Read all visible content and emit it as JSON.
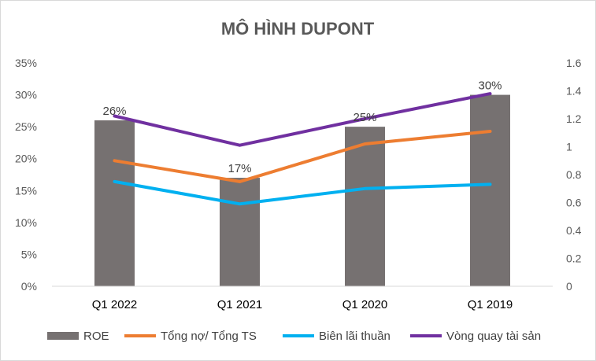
{
  "chart_data": {
    "type": "bar",
    "title": "MÔ HÌNH DUPONT",
    "categories": [
      "Q1 2022",
      "Q1 2021",
      "Q1 2020",
      "Q1 2019"
    ],
    "bar_series": {
      "name": "ROE",
      "axis": "left",
      "values": [
        0.26,
        0.17,
        0.25,
        0.3
      ],
      "labels": [
        "26%",
        "17%",
        "25%",
        "30%"
      ],
      "color": "#767171"
    },
    "line_series": [
      {
        "name": "Tổng nợ/ Tổng TS",
        "axis": "right",
        "values": [
          0.9,
          0.75,
          1.02,
          1.11
        ],
        "color": "#ED7D31"
      },
      {
        "name": "Biên lãi thuần",
        "axis": "right",
        "values": [
          0.75,
          0.59,
          0.7,
          0.73
        ],
        "color": "#00B0F0"
      },
      {
        "name": "Vòng quay tài sản",
        "axis": "right",
        "values": [
          1.22,
          1.01,
          1.2,
          1.38
        ],
        "color": "#7030A0"
      }
    ],
    "y_left": {
      "min": 0,
      "max": 0.35,
      "ticks": [
        0,
        0.05,
        0.1,
        0.15,
        0.2,
        0.25,
        0.3,
        0.35
      ],
      "tick_labels": [
        "0%",
        "5%",
        "10%",
        "15%",
        "20%",
        "25%",
        "30%",
        "35%"
      ]
    },
    "y_right": {
      "min": 0,
      "max": 1.6,
      "ticks": [
        0,
        0.2,
        0.4,
        0.6,
        0.8,
        1.0,
        1.2,
        1.4,
        1.6
      ],
      "tick_labels": [
        "0",
        "0.2",
        "0.4",
        "0.6",
        "0.8",
        "1",
        "1.2",
        "1.4",
        "1.6"
      ]
    },
    "grid": false,
    "legend_position": "bottom"
  }
}
